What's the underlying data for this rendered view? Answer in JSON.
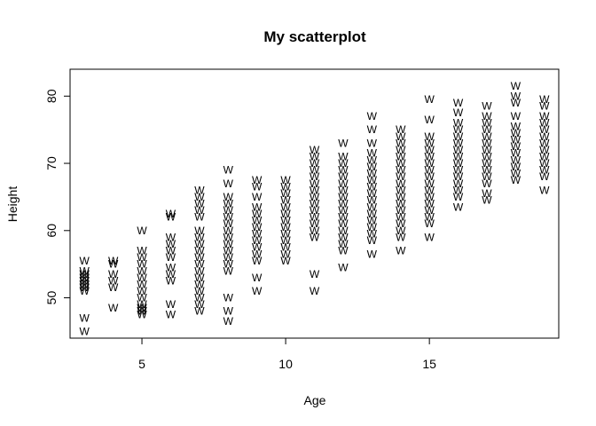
{
  "chart_data": {
    "type": "scatter",
    "title": "My scatterplot",
    "xlabel": "Age",
    "ylabel": "Height",
    "xlim": [
      2.5,
      19.5
    ],
    "ylim": [
      44,
      84
    ],
    "x_ticks": [
      5,
      10,
      15
    ],
    "y_ticks": [
      50,
      60,
      70,
      80
    ],
    "grid": false,
    "marker_symbol": "W",
    "series": [
      {
        "points": [
          [
            3,
            45
          ],
          [
            3,
            47
          ],
          [
            3,
            51
          ],
          [
            3,
            51.5
          ],
          [
            3,
            52
          ],
          [
            3,
            52.5
          ],
          [
            3,
            53
          ],
          [
            3,
            53.5
          ],
          [
            3,
            54
          ],
          [
            3,
            55.5
          ],
          [
            4,
            48.5
          ],
          [
            4,
            51.5
          ],
          [
            4,
            52.5
          ],
          [
            4,
            53.5
          ],
          [
            4,
            55
          ],
          [
            4,
            55.5
          ],
          [
            5,
            47.5
          ],
          [
            5,
            48
          ],
          [
            5,
            48.5
          ],
          [
            5,
            49
          ],
          [
            5,
            50
          ],
          [
            5,
            51
          ],
          [
            5,
            52
          ],
          [
            5,
            53
          ],
          [
            5,
            54
          ],
          [
            5,
            55
          ],
          [
            5,
            56
          ],
          [
            5,
            57
          ],
          [
            5,
            60
          ],
          [
            6,
            47.5
          ],
          [
            6,
            49
          ],
          [
            6,
            52.5
          ],
          [
            6,
            53.5
          ],
          [
            6,
            54.5
          ],
          [
            6,
            56
          ],
          [
            6,
            57
          ],
          [
            6,
            58
          ],
          [
            6,
            59
          ],
          [
            6,
            62
          ],
          [
            6,
            62.5
          ],
          [
            7,
            48
          ],
          [
            7,
            49
          ],
          [
            7,
            50
          ],
          [
            7,
            51
          ],
          [
            7,
            52
          ],
          [
            7,
            53
          ],
          [
            7,
            54
          ],
          [
            7,
            55
          ],
          [
            7,
            56
          ],
          [
            7,
            57
          ],
          [
            7,
            58
          ],
          [
            7,
            59
          ],
          [
            7,
            60
          ],
          [
            7,
            62
          ],
          [
            7,
            63
          ],
          [
            7,
            64
          ],
          [
            7,
            65
          ],
          [
            7,
            66
          ],
          [
            8,
            46.5
          ],
          [
            8,
            48
          ],
          [
            8,
            50
          ],
          [
            8,
            54
          ],
          [
            8,
            55
          ],
          [
            8,
            56
          ],
          [
            8,
            57
          ],
          [
            8,
            58
          ],
          [
            8,
            59
          ],
          [
            8,
            60
          ],
          [
            8,
            61
          ],
          [
            8,
            62
          ],
          [
            8,
            63
          ],
          [
            8,
            64
          ],
          [
            8,
            65
          ],
          [
            8,
            67
          ],
          [
            8,
            69
          ],
          [
            9,
            51
          ],
          [
            9,
            53
          ],
          [
            9,
            55.5
          ],
          [
            9,
            56.5
          ],
          [
            9,
            57.5
          ],
          [
            9,
            58.5
          ],
          [
            9,
            59.5
          ],
          [
            9,
            60.5
          ],
          [
            9,
            61.5
          ],
          [
            9,
            62.5
          ],
          [
            9,
            63.5
          ],
          [
            9,
            65
          ],
          [
            9,
            66.5
          ],
          [
            9,
            67.5
          ],
          [
            10,
            55.5
          ],
          [
            10,
            56.5
          ],
          [
            10,
            57.5
          ],
          [
            10,
            58.5
          ],
          [
            10,
            59.5
          ],
          [
            10,
            60.5
          ],
          [
            10,
            61.5
          ],
          [
            10,
            62.5
          ],
          [
            10,
            63.5
          ],
          [
            10,
            64.5
          ],
          [
            10,
            65.5
          ],
          [
            10,
            66.5
          ],
          [
            10,
            67.5
          ],
          [
            11,
            51
          ],
          [
            11,
            53.5
          ],
          [
            11,
            59
          ],
          [
            11,
            60
          ],
          [
            11,
            61
          ],
          [
            11,
            62
          ],
          [
            11,
            63
          ],
          [
            11,
            64
          ],
          [
            11,
            65
          ],
          [
            11,
            66
          ],
          [
            11,
            67
          ],
          [
            11,
            68
          ],
          [
            11,
            69
          ],
          [
            11,
            70
          ],
          [
            11,
            71
          ],
          [
            11,
            72
          ],
          [
            12,
            54.5
          ],
          [
            12,
            57
          ],
          [
            12,
            58
          ],
          [
            12,
            59
          ],
          [
            12,
            60
          ],
          [
            12,
            61
          ],
          [
            12,
            62
          ],
          [
            12,
            63
          ],
          [
            12,
            64
          ],
          [
            12,
            65
          ],
          [
            12,
            66
          ],
          [
            12,
            67
          ],
          [
            12,
            68
          ],
          [
            12,
            69
          ],
          [
            12,
            70
          ],
          [
            12,
            71
          ],
          [
            12,
            73
          ],
          [
            13,
            56.5
          ],
          [
            13,
            58.5
          ],
          [
            13,
            59.5
          ],
          [
            13,
            60.5
          ],
          [
            13,
            61.5
          ],
          [
            13,
            62.5
          ],
          [
            13,
            63.5
          ],
          [
            13,
            64.5
          ],
          [
            13,
            65.5
          ],
          [
            13,
            66.5
          ],
          [
            13,
            67.5
          ],
          [
            13,
            68.5
          ],
          [
            13,
            69.5
          ],
          [
            13,
            70.5
          ],
          [
            13,
            71.5
          ],
          [
            13,
            73
          ],
          [
            13,
            75
          ],
          [
            13,
            77
          ],
          [
            14,
            57
          ],
          [
            14,
            59
          ],
          [
            14,
            60
          ],
          [
            14,
            61
          ],
          [
            14,
            62
          ],
          [
            14,
            63
          ],
          [
            14,
            64
          ],
          [
            14,
            65
          ],
          [
            14,
            66
          ],
          [
            14,
            67
          ],
          [
            14,
            68
          ],
          [
            14,
            69
          ],
          [
            14,
            70
          ],
          [
            14,
            71
          ],
          [
            14,
            72
          ],
          [
            14,
            73
          ],
          [
            14,
            74
          ],
          [
            14,
            75
          ],
          [
            15,
            59
          ],
          [
            15,
            61
          ],
          [
            15,
            62
          ],
          [
            15,
            63
          ],
          [
            15,
            64
          ],
          [
            15,
            65
          ],
          [
            15,
            66
          ],
          [
            15,
            67
          ],
          [
            15,
            68
          ],
          [
            15,
            69
          ],
          [
            15,
            70
          ],
          [
            15,
            71
          ],
          [
            15,
            72
          ],
          [
            15,
            73
          ],
          [
            15,
            74
          ],
          [
            15,
            76.5
          ],
          [
            15,
            79.5
          ],
          [
            16,
            63.5
          ],
          [
            16,
            65
          ],
          [
            16,
            66
          ],
          [
            16,
            67
          ],
          [
            16,
            68
          ],
          [
            16,
            69
          ],
          [
            16,
            70
          ],
          [
            16,
            71
          ],
          [
            16,
            72
          ],
          [
            16,
            73
          ],
          [
            16,
            74
          ],
          [
            16,
            75
          ],
          [
            16,
            76
          ],
          [
            16,
            77.5
          ],
          [
            16,
            79
          ],
          [
            17,
            64.5
          ],
          [
            17,
            65.5
          ],
          [
            17,
            67
          ],
          [
            17,
            68
          ],
          [
            17,
            69
          ],
          [
            17,
            70
          ],
          [
            17,
            71
          ],
          [
            17,
            72
          ],
          [
            17,
            73
          ],
          [
            17,
            74
          ],
          [
            17,
            75
          ],
          [
            17,
            76
          ],
          [
            17,
            77
          ],
          [
            17,
            78.5
          ],
          [
            18,
            67.5
          ],
          [
            18,
            68.5
          ],
          [
            18,
            69.5
          ],
          [
            18,
            70.5
          ],
          [
            18,
            71.5
          ],
          [
            18,
            72.5
          ],
          [
            18,
            73.5
          ],
          [
            18,
            74.5
          ],
          [
            18,
            75.5
          ],
          [
            18,
            77
          ],
          [
            18,
            79
          ],
          [
            18,
            80
          ],
          [
            18,
            81.5
          ],
          [
            19,
            66
          ],
          [
            19,
            68
          ],
          [
            19,
            69
          ],
          [
            19,
            70
          ],
          [
            19,
            71
          ],
          [
            19,
            72
          ],
          [
            19,
            73
          ],
          [
            19,
            74
          ],
          [
            19,
            75
          ],
          [
            19,
            76
          ],
          [
            19,
            77
          ],
          [
            19,
            78.5
          ],
          [
            19,
            79.5
          ]
        ]
      }
    ]
  }
}
